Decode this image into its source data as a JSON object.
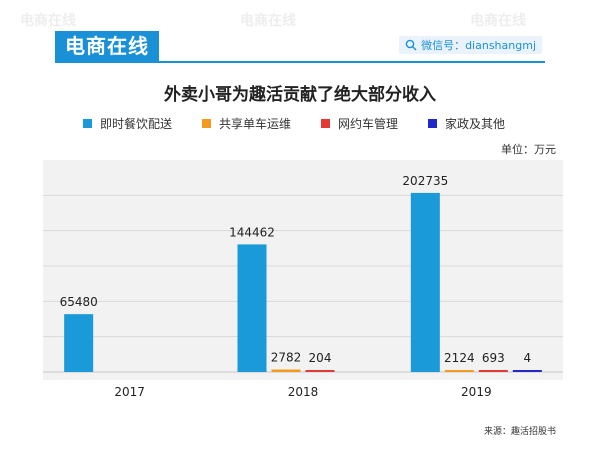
{
  "brand": {
    "logo_text": "电商在线",
    "wechat_label": "微信号：dianshangmj"
  },
  "colors": {
    "brand": "#1a91d7",
    "series": [
      "#1a9ad8",
      "#f39a21",
      "#e53935",
      "#2228c9"
    ]
  },
  "unit_label": "单位：万元",
  "source_label": "来源：趣活招股书",
  "chart_data": {
    "type": "bar",
    "title": "外卖小哥为趣活贡献了绝大部分收入",
    "categories": [
      "2017",
      "2018",
      "2019"
    ],
    "series": [
      {
        "name": "即时餐饮配送",
        "values": [
          65480,
          144462,
          202735
        ]
      },
      {
        "name": "共享单车运维",
        "values": [
          null,
          2782,
          2124
        ]
      },
      {
        "name": "网约车管理",
        "values": [
          null,
          204,
          693
        ]
      },
      {
        "name": "家政及其他",
        "values": [
          null,
          null,
          4
        ]
      }
    ],
    "ylim": [
      0,
      240000
    ],
    "grid": true,
    "legend_position": "top-left"
  }
}
